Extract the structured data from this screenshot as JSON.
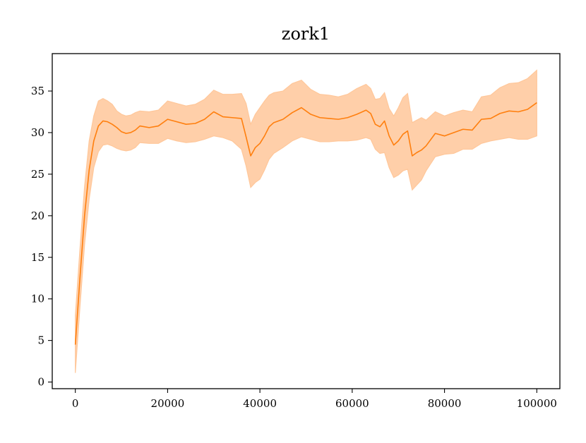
{
  "chart_data": {
    "type": "line",
    "title": "zork1",
    "xlabel": "",
    "ylabel": "",
    "xlim": [
      -5000,
      105000
    ],
    "ylim": [
      -0.8,
      39.5
    ],
    "xticks": [
      0,
      20000,
      40000,
      60000,
      80000,
      100000
    ],
    "xtick_labels": [
      "0",
      "20000",
      "40000",
      "60000",
      "80000",
      "100000"
    ],
    "yticks": [
      0,
      5,
      10,
      15,
      20,
      25,
      30,
      35
    ],
    "ytick_labels": [
      "0",
      "5",
      "10",
      "15",
      "20",
      "25",
      "30",
      "35"
    ],
    "grid": false,
    "legend": "none",
    "series": [
      {
        "color": "#ff7f0e",
        "band_color": "#ffc79a",
        "x": [
          0,
          1000,
          2000,
          3000,
          4000,
          5000,
          6000,
          7000,
          8000,
          9000,
          10000,
          11000,
          12000,
          13000,
          14000,
          16000,
          18000,
          20000,
          22000,
          24000,
          26000,
          28000,
          30000,
          32000,
          34000,
          36000,
          37000,
          38000,
          39000,
          40000,
          41000,
          42000,
          43000,
          45000,
          47000,
          49000,
          51000,
          53000,
          55000,
          57000,
          59000,
          61000,
          63000,
          64000,
          65000,
          66000,
          67000,
          68000,
          69000,
          70000,
          71000,
          72000,
          73000,
          74000,
          75000,
          76000,
          78000,
          80000,
          82000,
          84000,
          86000,
          88000,
          90000,
          92000,
          94000,
          96000,
          98000,
          100000
        ],
        "mean": [
          4.5,
          12.5,
          20.0,
          25.5,
          29.0,
          30.8,
          31.4,
          31.3,
          31.0,
          30.6,
          30.1,
          29.9,
          30.0,
          30.3,
          30.8,
          30.6,
          30.8,
          31.6,
          31.3,
          31.0,
          31.1,
          31.6,
          32.5,
          31.9,
          31.8,
          31.7,
          29.5,
          27.2,
          28.2,
          28.7,
          29.6,
          30.7,
          31.2,
          31.6,
          32.4,
          33.0,
          32.2,
          31.8,
          31.7,
          31.6,
          31.8,
          32.2,
          32.7,
          32.3,
          31.0,
          30.7,
          31.4,
          29.6,
          28.5,
          29.0,
          29.8,
          30.2,
          27.2,
          27.6,
          27.9,
          28.4,
          29.9,
          29.6,
          30.0,
          30.4,
          30.3,
          31.6,
          31.7,
          32.3,
          32.6,
          32.5,
          32.8,
          33.6
        ],
        "lower": [
          1.1,
          9.0,
          16.5,
          22.0,
          25.8,
          27.7,
          28.5,
          28.6,
          28.4,
          28.1,
          27.9,
          27.8,
          27.9,
          28.2,
          28.8,
          28.7,
          28.7,
          29.3,
          29.0,
          28.8,
          28.9,
          29.2,
          29.6,
          29.4,
          29.0,
          28.0,
          26.0,
          23.4,
          24.0,
          24.4,
          25.5,
          26.8,
          27.5,
          28.2,
          29.0,
          29.5,
          29.2,
          28.9,
          28.9,
          29.0,
          29.0,
          29.1,
          29.4,
          29.2,
          28.0,
          27.5,
          27.6,
          25.8,
          24.6,
          24.9,
          25.4,
          25.6,
          23.1,
          23.7,
          24.3,
          25.4,
          27.1,
          27.4,
          27.5,
          28.0,
          28.0,
          28.7,
          29.0,
          29.2,
          29.4,
          29.2,
          29.2,
          29.6
        ],
        "upper": [
          8.0,
          16.0,
          23.5,
          29.0,
          32.0,
          33.8,
          34.1,
          33.8,
          33.4,
          32.6,
          32.2,
          32.0,
          32.1,
          32.4,
          32.6,
          32.5,
          32.7,
          33.8,
          33.5,
          33.2,
          33.4,
          34.0,
          35.1,
          34.6,
          34.6,
          34.7,
          33.5,
          31.0,
          32.2,
          33.0,
          33.8,
          34.5,
          34.8,
          35.0,
          35.9,
          36.3,
          35.2,
          34.6,
          34.5,
          34.3,
          34.6,
          35.3,
          35.8,
          35.3,
          34.0,
          34.1,
          34.8,
          32.9,
          32.0,
          33.0,
          34.2,
          34.7,
          31.2,
          31.5,
          31.8,
          31.5,
          32.5,
          32.0,
          32.4,
          32.7,
          32.5,
          34.3,
          34.5,
          35.4,
          35.9,
          36.0,
          36.5,
          37.5
        ]
      }
    ]
  }
}
